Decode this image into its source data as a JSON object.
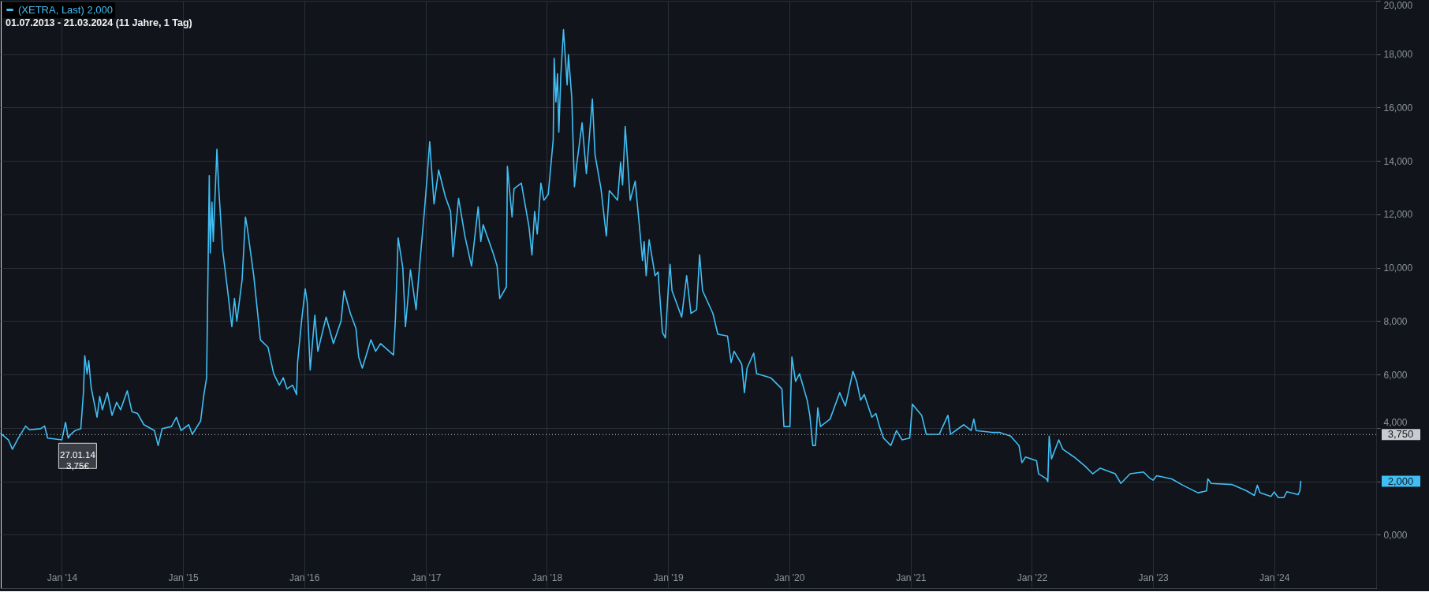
{
  "chart_data": {
    "type": "line",
    "subtitle": "01.07.2013 - 21.03.2024  (11 Jahre, 1 Tag)",
    "x": [
      "2013-07-01",
      "2013-07-24",
      "2013-08-05",
      "2013-08-22",
      "2013-09-14",
      "2013-09-25",
      "2013-10-29",
      "2013-11-10",
      "2013-11-19",
      "2014-01-01",
      "2014-01-12",
      "2014-01-20",
      "2014-01-27",
      "2014-02-10",
      "2014-02-27",
      "2014-03-07",
      "2014-03-11",
      "2014-03-18",
      "2014-03-23",
      "2014-03-30",
      "2014-04-17",
      "2014-04-25",
      "2014-05-03",
      "2014-05-18",
      "2014-06-01",
      "2014-06-15",
      "2014-06-27",
      "2014-07-17",
      "2014-07-31",
      "2014-08-17",
      "2014-09-05",
      "2014-10-07",
      "2014-10-18",
      "2014-10-30",
      "2014-11-27",
      "2014-12-12",
      "2014-12-26",
      "2015-01-18",
      "2015-01-29",
      "2015-02-23",
      "2015-03-04",
      "2015-03-13",
      "2015-03-21",
      "2015-03-24",
      "2015-03-29",
      "2015-04-02",
      "2015-04-13",
      "2015-04-18",
      "2015-04-30",
      "2015-05-14",
      "2015-05-28",
      "2015-06-05",
      "2015-06-12",
      "2015-06-28",
      "2015-07-08",
      "2015-07-13",
      "2015-08-02",
      "2015-08-22",
      "2015-09-14",
      "2015-10-01",
      "2015-10-18",
      "2015-10-30",
      "2015-11-10",
      "2015-11-27",
      "2015-12-09",
      "2015-12-12",
      "2015-12-24",
      "2016-01-04",
      "2016-01-10",
      "2016-01-19",
      "2016-02-02",
      "2016-02-11",
      "2016-03-07",
      "2016-03-29",
      "2016-04-21",
      "2016-04-30",
      "2016-05-19",
      "2016-06-05",
      "2016-06-13",
      "2016-06-24",
      "2016-07-20",
      "2016-08-03",
      "2016-08-18",
      "2016-09-26",
      "2016-10-02",
      "2016-10-10",
      "2016-10-24",
      "2016-11-01",
      "2016-11-16",
      "2016-12-03",
      "2016-12-14",
      "2016-12-28",
      "2017-01-06",
      "2017-01-13",
      "2017-01-26",
      "2017-02-09",
      "2017-03-01",
      "2017-03-17",
      "2017-03-24",
      "2017-04-10",
      "2017-04-29",
      "2017-05-19",
      "2017-06-08",
      "2017-06-16",
      "2017-06-23",
      "2017-07-23",
      "2017-08-04",
      "2017-08-12",
      "2017-09-01",
      "2017-09-04",
      "2017-09-18",
      "2017-09-24",
      "2017-10-16",
      "2017-11-08",
      "2017-11-17",
      "2017-11-25",
      "2017-12-03",
      "2017-12-14",
      "2017-12-23",
      "2018-01-05",
      "2018-01-20",
      "2018-01-23",
      "2018-01-28",
      "2018-02-02",
      "2018-02-06",
      "2018-02-12",
      "2018-02-20",
      "2018-03-03",
      "2018-03-07",
      "2018-03-17",
      "2018-03-25",
      "2018-04-01",
      "2018-04-17",
      "2018-04-30",
      "2018-05-18",
      "2018-05-26",
      "2018-06-13",
      "2018-06-29",
      "2018-07-08",
      "2018-08-02",
      "2018-08-11",
      "2018-08-17",
      "2018-08-25",
      "2018-09-09",
      "2018-09-24",
      "2018-10-10",
      "2018-10-16",
      "2018-10-21",
      "2018-10-27",
      "2018-11-05",
      "2018-11-23",
      "2018-12-02",
      "2018-12-15",
      "2018-12-24",
      "2019-01-02",
      "2019-01-07",
      "2019-01-13",
      "2019-02-11",
      "2019-02-26",
      "2019-03-11",
      "2019-03-28",
      "2019-04-06",
      "2019-04-15",
      "2019-05-16",
      "2019-05-31",
      "2019-06-29",
      "2019-07-10",
      "2019-07-19",
      "2019-08-11",
      "2019-08-19",
      "2019-08-27",
      "2019-09-16",
      "2019-09-25",
      "2019-11-06",
      "2019-12-10",
      "2019-12-16",
      "2020-01-03",
      "2020-01-09",
      "2020-01-20",
      "2020-02-01",
      "2020-02-24",
      "2020-03-03",
      "2020-03-12",
      "2020-03-20",
      "2020-03-27",
      "2020-04-04",
      "2020-05-03",
      "2020-06-01",
      "2020-06-18",
      "2020-06-27",
      "2020-07-11",
      "2020-07-22",
      "2020-08-03",
      "2020-08-14",
      "2020-09-06",
      "2020-09-18",
      "2020-09-29",
      "2020-10-11",
      "2020-11-02",
      "2020-11-19",
      "2020-12-06",
      "2020-12-29",
      "2021-01-06",
      "2021-02-03",
      "2021-02-17",
      "2021-03-28",
      "2021-04-23",
      "2021-05-01",
      "2021-06-10",
      "2021-07-02",
      "2021-07-10",
      "2021-07-17",
      "2021-09-03",
      "2021-09-25",
      "2021-10-29",
      "2021-11-23",
      "2021-12-02",
      "2021-12-13",
      "2022-01-15",
      "2022-01-21",
      "2022-02-13",
      "2022-02-18",
      "2022-02-22",
      "2022-03-01",
      "2022-03-23",
      "2022-04-04",
      "2022-05-08",
      "2022-06-11",
      "2022-07-03",
      "2022-07-26",
      "2022-09-09",
      "2022-09-26",
      "2022-10-24",
      "2022-12-03",
      "2022-12-20",
      "2023-01-01",
      "2023-01-12",
      "2023-02-26",
      "2023-04-01",
      "2023-05-16",
      "2023-06-11",
      "2023-06-15",
      "2023-06-25",
      "2023-08-26",
      "2023-10-10",
      "2023-11-02",
      "2023-11-11",
      "2023-11-19",
      "2023-12-22",
      "2024-01-01",
      "2024-01-13",
      "2024-01-30",
      "2024-02-08",
      "2024-03-13",
      "2024-03-18",
      "2024-03-21"
    ],
    "series": [
      {
        "name": "(XETRA, Last) 2,000",
        "color": "#40bff5",
        "values": [
          3.79,
          3.55,
          3.2,
          3.6,
          4.07,
          3.93,
          3.97,
          4.07,
          3.62,
          3.55,
          4.21,
          3.62,
          3.75,
          3.9,
          3.97,
          5.32,
          6.7,
          6.03,
          6.52,
          5.53,
          4.4,
          5.18,
          4.68,
          5.32,
          4.47,
          4.96,
          4.68,
          5.39,
          4.61,
          4.54,
          4.12,
          3.9,
          3.34,
          3.97,
          4.05,
          4.4,
          3.9,
          4.12,
          3.76,
          4.26,
          5.18,
          5.88,
          13.45,
          10.55,
          12.46,
          10.98,
          14.44,
          13.1,
          10.69,
          9.28,
          7.79,
          8.85,
          8.0,
          9.56,
          11.9,
          11.54,
          9.7,
          7.3,
          7.02,
          6.03,
          5.6,
          5.88,
          5.46,
          5.6,
          5.25,
          6.45,
          8.0,
          9.21,
          8.71,
          6.17,
          8.22,
          6.87,
          8.15,
          7.16,
          8.0,
          9.14,
          8.29,
          7.72,
          6.66,
          6.24,
          7.3,
          6.87,
          7.16,
          6.73,
          8.15,
          11.12,
          9.99,
          7.79,
          9.92,
          8.43,
          10.13,
          12.11,
          13.52,
          14.72,
          12.39,
          13.66,
          12.67,
          12.11,
          10.41,
          12.6,
          11.19,
          10.06,
          12.28,
          10.98,
          11.61,
          10.55,
          10.06,
          8.85,
          9.28,
          13.8,
          11.9,
          12.96,
          13.17,
          11.54,
          10.48,
          12.11,
          11.26,
          13.17,
          12.53,
          12.74,
          14.79,
          17.84,
          16.21,
          17.27,
          15.08,
          17.2,
          18.92,
          16.85,
          17.98,
          16.35,
          13.03,
          13.88,
          15.43,
          13.52,
          16.32,
          14.23,
          12.96,
          11.19,
          12.89,
          12.53,
          13.95,
          13.1,
          15.29,
          12.53,
          13.24,
          11.12,
          10.27,
          10.98,
          9.7,
          11.05,
          9.7,
          9.84,
          7.58,
          7.37,
          9.28,
          10.13,
          9.14,
          8.15,
          9.7,
          8.29,
          8.43,
          10.48,
          9.14,
          8.29,
          7.51,
          7.44,
          6.45,
          6.87,
          6.38,
          5.32,
          6.24,
          6.8,
          6.03,
          5.88,
          5.46,
          4.05,
          4.05,
          6.66,
          5.74,
          6.03,
          5.04,
          4.47,
          3.34,
          3.34,
          4.75,
          4.05,
          4.33,
          5.32,
          4.82,
          5.32,
          6.12,
          5.74,
          5.04,
          5.25,
          4.4,
          4.54,
          4.05,
          3.62,
          3.34,
          3.9,
          3.55,
          3.62,
          4.89,
          4.47,
          3.76,
          3.76,
          4.47,
          3.76,
          4.12,
          3.9,
          4.33,
          3.9,
          3.83,
          3.83,
          3.69,
          3.34,
          2.7,
          2.91,
          2.77,
          2.28,
          2.1,
          1.99,
          3.69,
          2.84,
          3.55,
          3.2,
          2.91,
          2.56,
          2.28,
          2.49,
          2.28,
          1.92,
          2.28,
          2.35,
          2.14,
          2.04,
          2.21,
          2.09,
          1.85,
          1.57,
          1.64,
          2.09,
          1.92,
          1.88,
          1.64,
          1.47,
          1.85,
          1.57,
          1.43,
          1.6,
          1.39,
          1.39,
          1.61,
          1.5,
          1.64,
          2.0
        ]
      }
    ],
    "xlim": [
      "2013-07-01",
      "2024-11-03"
    ],
    "xticks": [
      {
        "value": "2014-01-01",
        "label": "Jan '14"
      },
      {
        "value": "2015-01-01",
        "label": "Jan '15"
      },
      {
        "value": "2016-01-01",
        "label": "Jan '16"
      },
      {
        "value": "2017-01-01",
        "label": "Jan '17"
      },
      {
        "value": "2018-01-01",
        "label": "Jan '18"
      },
      {
        "value": "2019-01-01",
        "label": "Jan '19"
      },
      {
        "value": "2020-01-01",
        "label": "Jan '20"
      },
      {
        "value": "2021-01-01",
        "label": "Jan '21"
      },
      {
        "value": "2022-01-01",
        "label": "Jan '22"
      },
      {
        "value": "2023-01-01",
        "label": "Jan '23"
      },
      {
        "value": "2024-01-01",
        "label": "Jan '24"
      }
    ],
    "ylim": [
      -2,
      20
    ],
    "yticks": [
      {
        "value": 0,
        "label": "0,000"
      },
      {
        "value": 2,
        "label": null
      },
      {
        "value": 4,
        "label": "4,000"
      },
      {
        "value": 6,
        "label": "6,000"
      },
      {
        "value": 8,
        "label": "8,000"
      },
      {
        "value": 10,
        "label": "10,000"
      },
      {
        "value": 12,
        "label": "12,000"
      },
      {
        "value": 14,
        "label": "14,000"
      },
      {
        "value": 16,
        "label": "16,000"
      },
      {
        "value": 18,
        "label": "18,000"
      },
      {
        "value": 20,
        "label": "20,000"
      }
    ],
    "ref_lines": [
      {
        "axis": "y",
        "value": 3.75,
        "label": "3,750",
        "color": "#c9cbd0",
        "line_style": "dotted"
      }
    ],
    "annotations": [
      {
        "text": "27.01.14\n3,75€",
        "x": "2014-01-27",
        "y": 3.75
      },
      "2,000"
    ],
    "grid": true,
    "legend": "top left",
    "line_style": "solid"
  }
}
